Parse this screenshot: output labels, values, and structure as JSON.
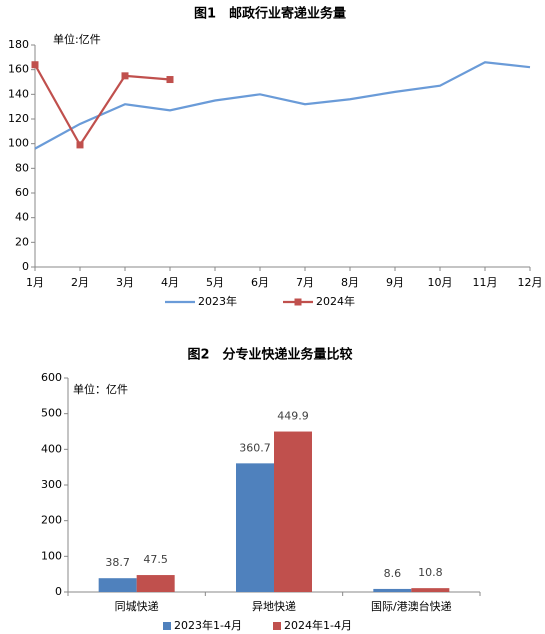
{
  "chart_data": [
    {
      "type": "line",
      "title": "图1　邮政行业寄递业务量",
      "unit": "单位:亿件",
      "categories": [
        "1月",
        "2月",
        "3月",
        "4月",
        "5月",
        "6月",
        "7月",
        "8月",
        "9月",
        "10月",
        "11月",
        "12月"
      ],
      "series": [
        {
          "name": "2023年",
          "color": "#6a9bd8",
          "values": [
            96,
            116,
            132,
            127,
            135,
            140,
            132,
            136,
            142,
            147,
            166,
            162
          ]
        },
        {
          "name": "2024年",
          "color": "#c0504d",
          "marker": "square",
          "values": [
            164,
            99,
            155,
            152,
            null,
            null,
            null,
            null,
            null,
            null,
            null,
            null
          ]
        }
      ],
      "ylim": [
        0,
        180
      ],
      "yticks": [
        0,
        20,
        40,
        60,
        80,
        100,
        120,
        140,
        160,
        180
      ],
      "grid": false
    },
    {
      "type": "bar",
      "title": "图2　分专业快递业务量比较",
      "unit": "单位：亿件",
      "categories": [
        "同城快递",
        "异地快递",
        "国际/港澳台快递"
      ],
      "series": [
        {
          "name": "2023年1-4月",
          "color": "#4f81bd",
          "values": [
            38.7,
            360.7,
            8.6
          ]
        },
        {
          "name": "2024年1-4月",
          "color": "#c0504d",
          "values": [
            47.5,
            449.9,
            10.8
          ]
        }
      ],
      "ylim": [
        0,
        600
      ],
      "yticks": [
        0,
        100,
        200,
        300,
        400,
        500,
        600
      ],
      "grid": false
    }
  ]
}
